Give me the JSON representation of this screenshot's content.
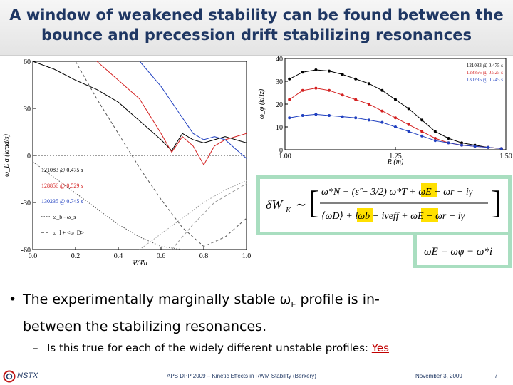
{
  "slide": {
    "title_line1": "A window of weakened stability can be found between the",
    "title_line2": "bounce and precession drift stabilizing resonances",
    "title_color": "#1f3763"
  },
  "chart_data": [
    {
      "type": "line",
      "ylabel": "ω_E·a (krad/s)",
      "xlabel": "Ψ/Ψa",
      "xlim": [
        0.0,
        1.0
      ],
      "ylim": [
        -60,
        60
      ],
      "x_ticks": [
        "0.0",
        "0.2",
        "0.4",
        "0.6",
        "0.8",
        "1.0"
      ],
      "y_ticks": [
        "60",
        "30",
        "0",
        "-30",
        "-60"
      ],
      "legend": [
        {
          "label": "121083 @ 0.475 s",
          "color": "#000000"
        },
        {
          "label": "128856 @ 0.529 s",
          "color": "#d42020"
        },
        {
          "label": "130235 @ 0.745 s",
          "color": "#2040c0"
        }
      ],
      "legend_lines": [
        {
          "label": "ω_b - ω_s",
          "style": "dotted"
        },
        {
          "label": "ω_l + <ω_D>",
          "style": "dashed"
        }
      ],
      "series": [
        {
          "name": "121083 @ 0.475 s",
          "color": "#000000",
          "style": "solid",
          "x": [
            0.0,
            0.1,
            0.2,
            0.3,
            0.4,
            0.5,
            0.6,
            0.65,
            0.7,
            0.75,
            0.8,
            0.85,
            0.9,
            0.95,
            1.0
          ],
          "y": [
            60,
            55,
            48,
            42,
            34,
            22,
            10,
            3,
            14,
            10,
            8,
            10,
            12,
            10,
            8
          ]
        },
        {
          "name": "128856 @ 0.529 s",
          "color": "#d42020",
          "style": "solid",
          "x": [
            0.3,
            0.4,
            0.5,
            0.6,
            0.65,
            0.7,
            0.75,
            0.8,
            0.85,
            0.9,
            0.95,
            1.0
          ],
          "y": [
            60,
            48,
            36,
            14,
            2,
            12,
            6,
            -6,
            6,
            10,
            12,
            14
          ]
        },
        {
          "name": "130235 @ 0.745 s",
          "color": "#2040c0",
          "style": "solid",
          "x": [
            0.5,
            0.6,
            0.7,
            0.75,
            0.8,
            0.85,
            0.9,
            0.95,
            1.0
          ],
          "y": [
            60,
            44,
            24,
            14,
            10,
            12,
            10,
            4,
            -2
          ]
        },
        {
          "name": "ω_b - ω_s (121083)",
          "color": "#555555",
          "style": "dotted",
          "x": [
            0.0,
            0.1,
            0.2,
            0.3,
            0.4,
            0.5,
            0.6,
            0.7
          ],
          "y": [
            -4,
            -14,
            -24,
            -34,
            -44,
            -52,
            -58,
            -60
          ]
        },
        {
          "name": "ω_l + <ω_D> (121083)",
          "color": "#555555",
          "style": "dashed",
          "x": [
            0.2,
            0.3,
            0.4,
            0.5,
            0.6,
            0.7,
            0.8,
            0.9,
            1.0
          ],
          "y": [
            60,
            36,
            14,
            -8,
            -28,
            -46,
            -58,
            -52,
            -40
          ]
        },
        {
          "name": "ω_b - ω_s (128856)",
          "color": "#999999",
          "style": "dotted",
          "x": [
            0.5,
            0.6,
            0.7,
            0.8,
            0.9,
            1.0
          ],
          "y": [
            -60,
            -50,
            -40,
            -30,
            -22,
            -16
          ]
        },
        {
          "name": "ω_l + <ω_D> (128856)",
          "color": "#999999",
          "style": "dashed",
          "x": [
            0.65,
            0.75,
            0.85,
            0.95,
            1.0
          ],
          "y": [
            -60,
            -44,
            -30,
            -22,
            -18
          ]
        }
      ]
    },
    {
      "type": "scatter",
      "ylabel": "ω_φ (kHz)",
      "xlabel": "R (m)",
      "xlim": [
        1.0,
        1.5
      ],
      "ylim": [
        0,
        40
      ],
      "x_ticks": [
        "1.00",
        "1.25",
        "1.50"
      ],
      "y_ticks": [
        "40",
        "30",
        "20",
        "10",
        "0"
      ],
      "legend": [
        {
          "label": "121083 @ 0.475 s",
          "color": "#000000"
        },
        {
          "label": "128856 @ 0.525 s",
          "color": "#d42020"
        },
        {
          "label": "130235 @ 0.745 s",
          "color": "#2040c0"
        }
      ],
      "series": [
        {
          "name": "121083 @ 0.475 s",
          "color": "#000000",
          "x": [
            1.01,
            1.04,
            1.07,
            1.1,
            1.13,
            1.16,
            1.19,
            1.22,
            1.25,
            1.28,
            1.31,
            1.34,
            1.37,
            1.4,
            1.43,
            1.46,
            1.49
          ],
          "y": [
            31,
            34,
            35,
            34.5,
            33,
            31,
            29,
            26,
            22,
            18,
            13,
            8,
            5,
            3,
            2,
            1,
            0.5
          ]
        },
        {
          "name": "128856 @ 0.525 s",
          "color": "#d42020",
          "x": [
            1.01,
            1.04,
            1.07,
            1.1,
            1.13,
            1.16,
            1.19,
            1.22,
            1.25,
            1.28,
            1.31,
            1.34,
            1.37,
            1.4,
            1.43,
            1.46,
            1.49
          ],
          "y": [
            22,
            26,
            27,
            26,
            24,
            22,
            20,
            17,
            14,
            11,
            8,
            5,
            3,
            2,
            1.5,
            1,
            0.5
          ]
        },
        {
          "name": "130235 @ 0.745 s",
          "color": "#2040c0",
          "x": [
            1.01,
            1.04,
            1.07,
            1.1,
            1.13,
            1.16,
            1.19,
            1.22,
            1.25,
            1.28,
            1.31,
            1.34,
            1.37,
            1.4,
            1.43,
            1.46,
            1.49
          ],
          "y": [
            14,
            15,
            15.5,
            15,
            14.5,
            14,
            13,
            12,
            10,
            8,
            6,
            4,
            3,
            2,
            1.5,
            1,
            0.5
          ]
        }
      ]
    }
  ],
  "equation1": {
    "lhs": "δW",
    "lhs_sub": "K",
    "sim": "∼",
    "numerator": "ω*N + (ε̂ − 3/2) ω*T + ωE − ωr − iγ",
    "denominator": "⟨ωD⟩ + lωb − iνeff + ωE − ωr − iγ",
    "highlight_color": "#ffe000"
  },
  "equation2": {
    "text": "ωE = ωφ − ω*i"
  },
  "bullet": {
    "line1": "The experimentally marginally stable ω",
    "line1_sub": "E",
    "line1_end": " profile is in-",
    "line2": "between the stabilizing resonances."
  },
  "sub_bullet": {
    "text": "Is this true for each of the widely different unstable profiles: ",
    "answer": "Yes",
    "answer_color": "#c00000"
  },
  "footer": {
    "logo": "NSTX",
    "center": "APS DPP 2009 – Kinetic Effects in RWM Stability (Berkery)",
    "date": "November 3, 2009",
    "page": "7"
  }
}
